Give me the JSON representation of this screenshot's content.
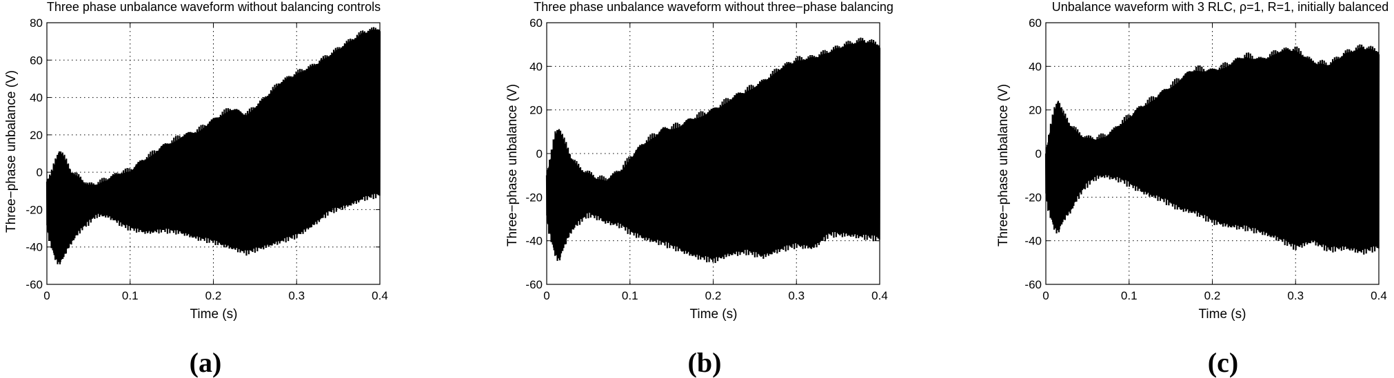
{
  "chart_data": [
    {
      "type": "area",
      "panel_label": "(a)",
      "title": "Three phase unbalance waveform without balancing controls",
      "xlabel": "Time (s)",
      "ylabel": "Three−phase unbalance (V)",
      "xlim": [
        0,
        0.4
      ],
      "ylim": [
        -60,
        80
      ],
      "xticks": [
        0,
        0.1,
        0.2,
        0.3,
        0.4
      ],
      "xtick_labels": [
        "0",
        "0.1",
        "0.2",
        "0.3",
        "0.4"
      ],
      "yticks": [
        -60,
        -40,
        -20,
        0,
        20,
        40,
        60,
        80
      ],
      "grid": true,
      "series": [
        {
          "name": "upper envelope",
          "x": [
            0,
            0.005,
            0.01,
            0.015,
            0.02,
            0.03,
            0.04,
            0.05,
            0.06,
            0.07,
            0.08,
            0.09,
            0.1,
            0.12,
            0.14,
            0.16,
            0.18,
            0.2,
            0.22,
            0.24,
            0.26,
            0.28,
            0.3,
            0.32,
            0.34,
            0.36,
            0.38,
            0.4
          ],
          "values": [
            -5,
            -2,
            5,
            11,
            8,
            -1,
            -4,
            -8,
            -7,
            -5,
            -3,
            -1,
            0,
            7,
            13,
            18,
            21,
            27,
            33,
            30,
            38,
            47,
            52,
            56,
            62,
            68,
            74,
            76
          ]
        },
        {
          "name": "lower envelope",
          "x": [
            0,
            0.005,
            0.01,
            0.015,
            0.02,
            0.03,
            0.04,
            0.05,
            0.06,
            0.07,
            0.08,
            0.09,
            0.1,
            0.12,
            0.14,
            0.16,
            0.18,
            0.2,
            0.22,
            0.24,
            0.26,
            0.28,
            0.3,
            0.32,
            0.34,
            0.36,
            0.38,
            0.4
          ],
          "values": [
            -30,
            -38,
            -45,
            -48,
            -44,
            -36,
            -30,
            -26,
            -22,
            -22,
            -24,
            -27,
            -29,
            -31,
            -30,
            -31,
            -34,
            -36,
            -39,
            -42,
            -39,
            -36,
            -33,
            -27,
            -20,
            -17,
            -13,
            -11
          ]
        }
      ]
    },
    {
      "type": "area",
      "panel_label": "(b)",
      "title": "Three phase unbalance waveform without three−phase balancing",
      "xlabel": "Time (s)",
      "ylabel": "Three−phase unbalance (V)",
      "xlim": [
        0,
        0.4
      ],
      "ylim": [
        -60,
        60
      ],
      "xticks": [
        0,
        0.1,
        0.2,
        0.3,
        0.4
      ],
      "xtick_labels": [
        "0",
        "0.1",
        "0.2",
        "0.3",
        "0.4"
      ],
      "yticks": [
        -60,
        -40,
        -20,
        0,
        20,
        40,
        60
      ],
      "grid": true,
      "series": [
        {
          "name": "upper envelope",
          "x": [
            0,
            0.005,
            0.01,
            0.015,
            0.02,
            0.03,
            0.04,
            0.05,
            0.06,
            0.07,
            0.08,
            0.09,
            0.1,
            0.12,
            0.14,
            0.16,
            0.18,
            0.2,
            0.22,
            0.24,
            0.26,
            0.28,
            0.3,
            0.32,
            0.34,
            0.36,
            0.38,
            0.4
          ],
          "values": [
            -10,
            -2,
            8,
            11,
            6,
            -3,
            -8,
            -10,
            -12,
            -13,
            -11,
            -8,
            -3,
            5,
            10,
            12,
            16,
            19,
            24,
            28,
            32,
            38,
            42,
            43,
            46,
            49,
            51,
            49
          ]
        },
        {
          "name": "lower envelope",
          "x": [
            0,
            0.005,
            0.01,
            0.015,
            0.02,
            0.03,
            0.04,
            0.05,
            0.06,
            0.07,
            0.08,
            0.09,
            0.1,
            0.12,
            0.14,
            0.16,
            0.18,
            0.2,
            0.22,
            0.24,
            0.26,
            0.28,
            0.3,
            0.32,
            0.34,
            0.36,
            0.38,
            0.4
          ],
          "values": [
            -30,
            -38,
            -45,
            -48,
            -42,
            -34,
            -30,
            -27,
            -28,
            -30,
            -31,
            -32,
            -35,
            -38,
            -40,
            -43,
            -46,
            -48,
            -45,
            -44,
            -46,
            -43,
            -41,
            -42,
            -36,
            -36,
            -37,
            -38
          ]
        }
      ]
    },
    {
      "type": "area",
      "panel_label": "(c)",
      "title": "Unbalance waveform with 3 RLC, ρ=1, R=1, initially balanced",
      "xlabel": "Time (s)",
      "ylabel": "Three−phase unbalance (V)",
      "xlim": [
        0,
        0.4
      ],
      "ylim": [
        -60,
        60
      ],
      "xticks": [
        0,
        0.1,
        0.2,
        0.3,
        0.4
      ],
      "xtick_labels": [
        "0",
        "0.1",
        "0.2",
        "0.3",
        "0.4"
      ],
      "yticks": [
        -60,
        -40,
        -20,
        0,
        20,
        40,
        60
      ],
      "grid": true,
      "series": [
        {
          "name": "upper envelope",
          "x": [
            0,
            0.005,
            0.01,
            0.015,
            0.02,
            0.03,
            0.04,
            0.05,
            0.06,
            0.07,
            0.08,
            0.09,
            0.1,
            0.12,
            0.14,
            0.16,
            0.18,
            0.2,
            0.22,
            0.24,
            0.26,
            0.28,
            0.3,
            0.32,
            0.34,
            0.36,
            0.38,
            0.4
          ],
          "values": [
            0,
            10,
            19,
            24,
            18,
            12,
            8,
            6,
            6,
            7,
            9,
            13,
            16,
            22,
            27,
            33,
            38,
            37,
            40,
            44,
            42,
            46,
            47,
            41,
            40,
            45,
            48,
            46
          ]
        },
        {
          "name": "lower envelope",
          "x": [
            0,
            0.005,
            0.01,
            0.015,
            0.02,
            0.03,
            0.04,
            0.05,
            0.06,
            0.07,
            0.08,
            0.09,
            0.1,
            0.12,
            0.14,
            0.16,
            0.18,
            0.2,
            0.22,
            0.24,
            0.26,
            0.28,
            0.3,
            0.32,
            0.34,
            0.36,
            0.38,
            0.4
          ],
          "values": [
            -20,
            -27,
            -33,
            -35,
            -30,
            -25,
            -18,
            -13,
            -10,
            -9,
            -10,
            -11,
            -13,
            -17,
            -20,
            -24,
            -26,
            -30,
            -32,
            -33,
            -35,
            -38,
            -42,
            -39,
            -43,
            -42,
            -44,
            -42
          ]
        }
      ]
    }
  ]
}
